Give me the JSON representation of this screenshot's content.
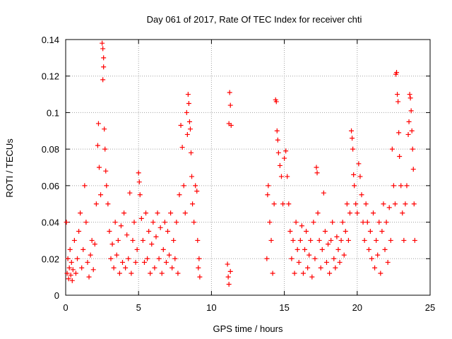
{
  "chart_data": {
    "type": "scatter",
    "title": "Day 061 of 2017, Rate Of TEC Index for receiver chti",
    "xlabel": "GPS time / hours",
    "ylabel": "ROTI / TECUs",
    "xlim": [
      0,
      25
    ],
    "ylim": [
      0,
      0.14
    ],
    "xticks": [
      0,
      5,
      10,
      15,
      20,
      25
    ],
    "xtick_labels": [
      "0",
      "5",
      "10",
      "15",
      "20",
      "25"
    ],
    "yticks": [
      0,
      0.02,
      0.04,
      0.06,
      0.08,
      0.1,
      0.12,
      0.14
    ],
    "ytick_labels": [
      "0",
      "0.02",
      "0.04",
      "0.06",
      "0.08",
      "0.1",
      "0.12",
      "0.14"
    ],
    "grid": true,
    "marker": "plus",
    "series_color": "#ff0000",
    "series": [
      {
        "points": [
          [
            0.05,
            0.04
          ],
          [
            0.1,
            0.012
          ],
          [
            0.15,
            0.02
          ],
          [
            0.2,
            0.009
          ],
          [
            0.25,
            0.015
          ],
          [
            0.3,
            0.025
          ],
          [
            0.35,
            0.011
          ],
          [
            0.4,
            0.018
          ],
          [
            0.45,
            0.008
          ],
          [
            0.5,
            0.014
          ],
          [
            0.6,
            0.03
          ],
          [
            0.7,
            0.012
          ],
          [
            0.8,
            0.02
          ],
          [
            0.9,
            0.035
          ],
          [
            1.0,
            0.045
          ],
          [
            1.1,
            0.015
          ],
          [
            1.2,
            0.025
          ],
          [
            1.3,
            0.06
          ],
          [
            1.4,
            0.04
          ],
          [
            1.5,
            0.018
          ],
          [
            1.6,
            0.01
          ],
          [
            1.7,
            0.022
          ],
          [
            1.8,
            0.03
          ],
          [
            1.9,
            0.014
          ],
          [
            2.0,
            0.028
          ],
          [
            2.1,
            0.05
          ],
          [
            2.2,
            0.082
          ],
          [
            2.25,
            0.094
          ],
          [
            2.3,
            0.07
          ],
          [
            2.4,
            0.055
          ],
          [
            2.5,
            0.138
          ],
          [
            2.55,
            0.135
          ],
          [
            2.6,
            0.13
          ],
          [
            2.6,
            0.125
          ],
          [
            2.55,
            0.118
          ],
          [
            2.65,
            0.091
          ],
          [
            2.7,
            0.08
          ],
          [
            2.75,
            0.068
          ],
          [
            2.8,
            0.06
          ],
          [
            2.9,
            0.05
          ],
          [
            3.0,
            0.035
          ],
          [
            3.1,
            0.02
          ],
          [
            3.2,
            0.028
          ],
          [
            3.3,
            0.015
          ],
          [
            3.4,
            0.04
          ],
          [
            3.5,
            0.022
          ],
          [
            3.6,
            0.03
          ],
          [
            3.7,
            0.012
          ],
          [
            3.8,
            0.038
          ],
          [
            3.9,
            0.018
          ],
          [
            4.0,
            0.045
          ],
          [
            4.1,
            0.015
          ],
          [
            4.2,
            0.033
          ],
          [
            4.3,
            0.02
          ],
          [
            4.4,
            0.056
          ],
          [
            4.5,
            0.012
          ],
          [
            4.6,
            0.03
          ],
          [
            4.7,
            0.04
          ],
          [
            4.8,
            0.018
          ],
          [
            4.9,
            0.025
          ],
          [
            5.0,
            0.067
          ],
          [
            5.05,
            0.062
          ],
          [
            5.1,
            0.055
          ],
          [
            5.2,
            0.042
          ],
          [
            5.3,
            0.03
          ],
          [
            5.4,
            0.018
          ],
          [
            5.5,
            0.045
          ],
          [
            5.6,
            0.02
          ],
          [
            5.7,
            0.035
          ],
          [
            5.8,
            0.012
          ],
          [
            5.9,
            0.028
          ],
          [
            6.0,
            0.04
          ],
          [
            6.1,
            0.015
          ],
          [
            6.2,
            0.032
          ],
          [
            6.3,
            0.045
          ],
          [
            6.4,
            0.02
          ],
          [
            6.5,
            0.037
          ],
          [
            6.6,
            0.012
          ],
          [
            6.7,
            0.025
          ],
          [
            6.8,
            0.04
          ],
          [
            6.9,
            0.018
          ],
          [
            7.0,
            0.035
          ],
          [
            7.1,
            0.022
          ],
          [
            7.2,
            0.045
          ],
          [
            7.3,
            0.015
          ],
          [
            7.4,
            0.03
          ],
          [
            7.5,
            0.02
          ],
          [
            7.6,
            0.04
          ],
          [
            7.7,
            0.012
          ],
          [
            7.8,
            0.055
          ],
          [
            7.9,
            0.093
          ],
          [
            8.0,
            0.081
          ],
          [
            8.1,
            0.06
          ],
          [
            8.2,
            0.045
          ],
          [
            8.3,
            0.1
          ],
          [
            8.35,
            0.088
          ],
          [
            8.4,
            0.11
          ],
          [
            8.45,
            0.105
          ],
          [
            8.5,
            0.095
          ],
          [
            8.55,
            0.091
          ],
          [
            8.6,
            0.078
          ],
          [
            8.65,
            0.065
          ],
          [
            8.7,
            0.05
          ],
          [
            8.8,
            0.04
          ],
          [
            8.9,
            0.06
          ],
          [
            9.0,
            0.057
          ],
          [
            9.05,
            0.03
          ],
          [
            9.1,
            0.015
          ],
          [
            9.15,
            0.02
          ],
          [
            9.2,
            0.01
          ],
          [
            11.1,
            0.017
          ],
          [
            11.15,
            0.01
          ],
          [
            11.2,
            0.094
          ],
          [
            11.25,
            0.111
          ],
          [
            11.3,
            0.104
          ],
          [
            11.35,
            0.093
          ],
          [
            11.2,
            0.006
          ],
          [
            11.3,
            0.013
          ],
          [
            13.8,
            0.02
          ],
          [
            13.85,
            0.055
          ],
          [
            13.9,
            0.06
          ],
          [
            14.0,
            0.04
          ],
          [
            14.1,
            0.03
          ],
          [
            14.2,
            0.012
          ],
          [
            14.3,
            0.05
          ],
          [
            14.4,
            0.107
          ],
          [
            14.45,
            0.106
          ],
          [
            14.5,
            0.09
          ],
          [
            14.55,
            0.085
          ],
          [
            14.6,
            0.078
          ],
          [
            14.7,
            0.071
          ],
          [
            14.8,
            0.065
          ],
          [
            14.9,
            0.05
          ],
          [
            15.0,
            0.075
          ],
          [
            15.1,
            0.079
          ],
          [
            15.2,
            0.065
          ],
          [
            15.3,
            0.05
          ],
          [
            15.4,
            0.035
          ],
          [
            15.5,
            0.02
          ],
          [
            15.6,
            0.03
          ],
          [
            15.7,
            0.012
          ],
          [
            15.8,
            0.04
          ],
          [
            15.9,
            0.025
          ],
          [
            16.0,
            0.018
          ],
          [
            16.1,
            0.03
          ],
          [
            16.2,
            0.038
          ],
          [
            16.3,
            0.012
          ],
          [
            16.4,
            0.025
          ],
          [
            16.5,
            0.035
          ],
          [
            16.6,
            0.015
          ],
          [
            16.7,
            0.022
          ],
          [
            16.8,
            0.03
          ],
          [
            16.9,
            0.01
          ],
          [
            17.0,
            0.04
          ],
          [
            17.1,
            0.02
          ],
          [
            17.2,
            0.07
          ],
          [
            17.25,
            0.067
          ],
          [
            17.3,
            0.045
          ],
          [
            17.4,
            0.03
          ],
          [
            17.5,
            0.015
          ],
          [
            17.6,
            0.025
          ],
          [
            17.7,
            0.056
          ],
          [
            17.8,
            0.035
          ],
          [
            17.9,
            0.018
          ],
          [
            18.0,
            0.028
          ],
          [
            18.1,
            0.012
          ],
          [
            18.2,
            0.03
          ],
          [
            18.3,
            0.04
          ],
          [
            18.4,
            0.02
          ],
          [
            18.5,
            0.015
          ],
          [
            18.6,
            0.032
          ],
          [
            18.7,
            0.025
          ],
          [
            18.8,
            0.018
          ],
          [
            18.9,
            0.03
          ],
          [
            19.0,
            0.04
          ],
          [
            19.1,
            0.022
          ],
          [
            19.2,
            0.035
          ],
          [
            19.3,
            0.05
          ],
          [
            19.4,
            0.03
          ],
          [
            19.5,
            0.045
          ],
          [
            19.6,
            0.09
          ],
          [
            19.65,
            0.086
          ],
          [
            19.7,
            0.08
          ],
          [
            19.75,
            0.066
          ],
          [
            19.8,
            0.06
          ],
          [
            19.9,
            0.05
          ],
          [
            20.0,
            0.045
          ],
          [
            20.1,
            0.072
          ],
          [
            20.2,
            0.065
          ],
          [
            20.3,
            0.055
          ],
          [
            20.4,
            0.04
          ],
          [
            20.5,
            0.03
          ],
          [
            20.6,
            0.05
          ],
          [
            20.7,
            0.04
          ],
          [
            20.8,
            0.025
          ],
          [
            20.9,
            0.035
          ],
          [
            21.0,
            0.02
          ],
          [
            21.1,
            0.045
          ],
          [
            21.2,
            0.015
          ],
          [
            21.3,
            0.03
          ],
          [
            21.4,
            0.022
          ],
          [
            21.5,
            0.04
          ],
          [
            21.6,
            0.012
          ],
          [
            21.7,
            0.035
          ],
          [
            21.8,
            0.05
          ],
          [
            21.9,
            0.025
          ],
          [
            22.0,
            0.04
          ],
          [
            22.1,
            0.018
          ],
          [
            22.2,
            0.048
          ],
          [
            22.3,
            0.03
          ],
          [
            22.4,
            0.08
          ],
          [
            22.5,
            0.06
          ],
          [
            22.6,
            0.05
          ],
          [
            22.65,
            0.121
          ],
          [
            22.7,
            0.122
          ],
          [
            22.75,
            0.11
          ],
          [
            22.8,
            0.106
          ],
          [
            22.85,
            0.089
          ],
          [
            22.9,
            0.076
          ],
          [
            23.0,
            0.06
          ],
          [
            23.1,
            0.045
          ],
          [
            23.2,
            0.03
          ],
          [
            23.3,
            0.05
          ],
          [
            23.4,
            0.06
          ],
          [
            23.5,
            0.088
          ],
          [
            23.55,
            0.095
          ],
          [
            23.6,
            0.11
          ],
          [
            23.65,
            0.108
          ],
          [
            23.7,
            0.101
          ],
          [
            23.75,
            0.09
          ],
          [
            23.8,
            0.08
          ],
          [
            23.85,
            0.069
          ],
          [
            23.9,
            0.05
          ],
          [
            23.95,
            0.03
          ]
        ]
      }
    ]
  }
}
